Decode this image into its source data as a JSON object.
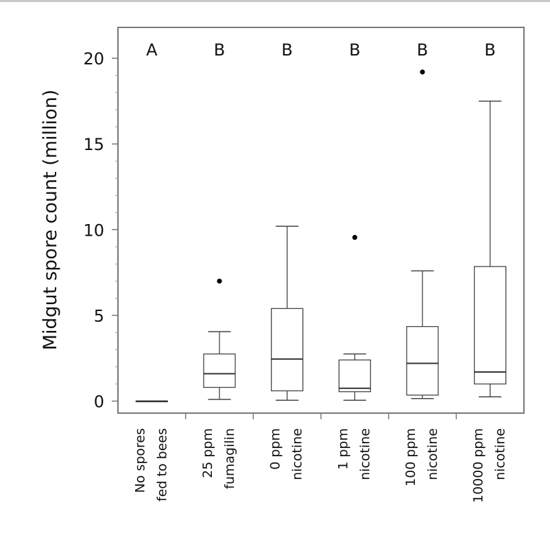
{
  "chart_data": {
    "type": "box",
    "ylabel": "Midgut spore count (million)",
    "ylim": [
      -0.7,
      21.8
    ],
    "yticks": [
      0,
      5,
      10,
      15,
      20
    ],
    "grid": false,
    "categories": [
      [
        "No spores",
        "fed to bees"
      ],
      [
        "25 ppm",
        "fumagilin"
      ],
      [
        "0 ppm",
        "nicotine"
      ],
      [
        "1 ppm",
        "nicotine"
      ],
      [
        "100 ppm",
        "nicotine"
      ],
      [
        "10000 ppm",
        "nicotine"
      ]
    ],
    "significance_letters": [
      "A",
      "B",
      "B",
      "B",
      "B",
      "B"
    ],
    "boxes": [
      {
        "min": 0.0,
        "q1": 0.0,
        "median": 0.0,
        "q3": 0.0,
        "max": 0.0,
        "outliers": []
      },
      {
        "min": 0.1,
        "q1": 0.8,
        "median": 1.6,
        "q3": 2.75,
        "max": 4.05,
        "outliers": [
          7.0
        ]
      },
      {
        "min": 0.05,
        "q1": 0.6,
        "median": 2.45,
        "q3": 5.4,
        "max": 10.2,
        "outliers": []
      },
      {
        "min": 0.05,
        "q1": 0.55,
        "median": 0.75,
        "q3": 2.4,
        "max": 2.75,
        "outliers": [
          9.55
        ]
      },
      {
        "min": 0.15,
        "q1": 0.35,
        "median": 2.2,
        "q3": 4.35,
        "max": 7.6,
        "outliers": [
          19.2
        ]
      },
      {
        "min": 0.25,
        "q1": 1.0,
        "median": 1.7,
        "q3": 7.85,
        "max": 17.5,
        "outliers": []
      }
    ]
  }
}
